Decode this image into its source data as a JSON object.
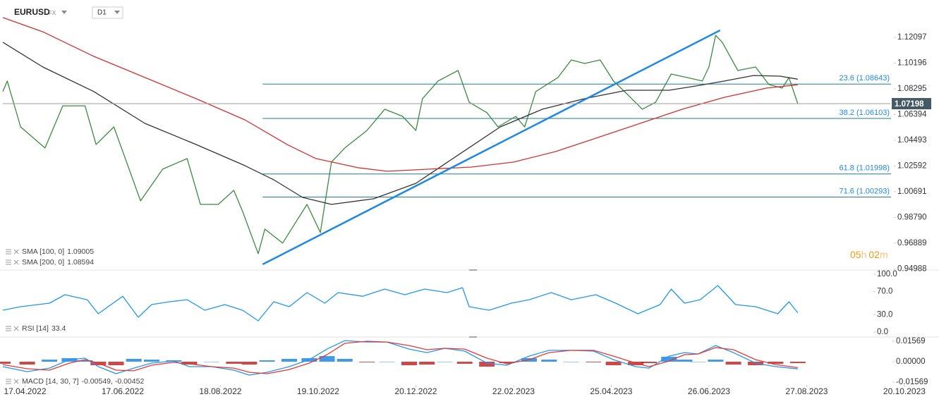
{
  "header": {
    "symbol": "EURUSD",
    "market": "FX",
    "interval": "D1",
    "timer": [
      "05",
      "h",
      "02",
      "m"
    ]
  },
  "chart_data": [
    {
      "type": "line",
      "xlim": [
        -10,
        410
      ],
      "ylim": [
        0.949,
        1.1486
      ],
      "yticks": [
        1.12097,
        1.10196,
        1.08295,
        1.06394,
        1.04493,
        1.02592,
        1.00691,
        {
          "value": 0.9879,
          "label": "0.98790"
        },
        0.96889,
        0.94988
      ],
      "series": [
        {
          "color": "#3b8a3e",
          "x": [
            -10,
            -8,
            -2,
            9,
            17,
            27,
            32,
            40,
            48,
            52,
            62,
            73,
            79,
            87,
            94,
            98,
            105,
            108,
            116,
            127,
            133,
            138,
            144,
            154,
            162,
            170,
            176,
            179,
            186,
            195,
            200,
            208,
            213,
            221,
            225,
            230,
            240,
            246,
            252,
            259,
            265,
            270,
            278,
            284,
            291,
            298,
            305,
            308,
            311,
            314,
            321,
            329,
            335,
            341,
            344,
            348
          ],
          "values": [
            1.0809,
            1.0887,
            1.0548,
            1.0392,
            1.0704,
            1.0704,
            1.0418,
            1.0548,
            1.0184,
            1.0001,
            1.0236,
            1.0314,
            0.9975,
            0.9975,
            1.0079,
            0.9923,
            0.9611,
            0.9793,
            0.9689,
            0.9975,
            0.9767,
            1.0288,
            1.0392,
            1.0522,
            1.0679,
            1.0626,
            1.0522,
            1.0757,
            1.0887,
            1.0965,
            1.0731,
            1.0653,
            1.0548,
            1.0626,
            1.0548,
            1.0809,
            1.0913,
            1.1043,
            1.1017,
            1.1043,
            1.0887,
            1.0809,
            1.0679,
            1.0731,
            1.0939,
            1.0913,
            1.0887,
            1.0991,
            1.1225,
            1.1174,
            1.0965,
            1.0991,
            1.0861,
            1.0835,
            1.0913,
            1.07198
          ]
        },
        {
          "name": "SMA [100, 0]",
          "color": "#333333",
          "x": [
            -10,
            8,
            31,
            54,
            77,
            99,
            112,
            125,
            138,
            157,
            176,
            195,
            214,
            233,
            252,
            271,
            290,
            302,
            315,
            328,
            340,
            348
          ],
          "values": [
            1.1174,
            1.0991,
            1.0809,
            1.0574,
            1.0418,
            1.0262,
            1.0157,
            1.0027,
            0.9975,
            1.0017,
            1.0131,
            1.034,
            1.0548,
            1.0679,
            1.0757,
            1.0819,
            1.0819,
            1.085,
            1.0887,
            1.0928,
            1.0923,
            1.09005
          ]
        },
        {
          "name": "SMA [200, 0]",
          "color": "#d32f2f",
          "x": [
            -10,
            8,
            31,
            54,
            77,
            99,
            118,
            131,
            150,
            163,
            182,
            201,
            220,
            239,
            258,
            277,
            296,
            315,
            334,
            348
          ],
          "values": [
            1.1356,
            1.1251,
            1.1069,
            1.0913,
            1.0757,
            1.06,
            1.0418,
            1.0314,
            1.0246,
            1.022,
            1.0236,
            1.0251,
            1.0288,
            1.0366,
            1.047,
            1.0574,
            1.0679,
            1.0767,
            1.0835,
            1.08594
          ]
        }
      ],
      "levels_x": [
        107,
        390
      ],
      "level_color": "#1f7f8c",
      "level_label_color": "#1e88e5",
      "levels": [
        {
          "label": "23.6 (1.08643)",
          "value": 1.08643
        },
        {
          "label": "38.2 (1.06103)",
          "value": 1.06103
        },
        {
          "label": "61.8 (1.01998)",
          "value": 1.01998
        },
        {
          "label": "71.6 (1.00293)",
          "value": 1.00293
        }
      ],
      "trendline": {
        "color": "#1e88e5",
        "x": [
          107,
          313
        ],
        "values": [
          0.9532,
          1.1262
        ]
      }
    },
    {
      "type": "line",
      "xlim": [
        -10,
        410
      ],
      "ylim": [
        -8.5,
        107.3
      ],
      "yticks": [
        {
          "value": 100,
          "label": "100.0"
        },
        {
          "value": 70,
          "label": "70.0"
        },
        {
          "value": 30,
          "label": "30.0"
        },
        {
          "value": 0,
          "label": "0.0"
        }
      ],
      "series": [
        {
          "name": "RSI [14]",
          "color": "#2196f3",
          "x": [
            -10,
            -2,
            11,
            18,
            28,
            33,
            44,
            51,
            57,
            65,
            73,
            81,
            90,
            98,
            105,
            112,
            119,
            127,
            135,
            141,
            152,
            162,
            171,
            180,
            190,
            197,
            200,
            209,
            219,
            227,
            237,
            246,
            257,
            266,
            276,
            286,
            291,
            297,
            304,
            312,
            320,
            329,
            339,
            344,
            348
          ],
          "values": [
            37.8,
            43.9,
            50,
            64.6,
            56,
            31.7,
            62,
            25.6,
            47.6,
            52.4,
            56,
            37.8,
            47.6,
            37.8,
            19.5,
            52.4,
            43.9,
            68.3,
            50,
            68.3,
            62,
            74.4,
            64.6,
            74.4,
            68.3,
            76.8,
            43.9,
            37.8,
            50,
            56,
            68.3,
            56,
            64.6,
            50,
            31.7,
            47.6,
            74.4,
            50,
            56,
            80.5,
            47.6,
            43.9,
            31.7,
            52.4,
            33.4
          ]
        }
      ]
    },
    {
      "type": "line",
      "xlim": [
        -10,
        410
      ],
      "ylim": [
        -0.01785,
        0.01894
      ],
      "yticks": [
        0.01569,
        {
          "value": 0,
          "label": "0.00000"
        },
        -0.01569
      ],
      "xticks": [
        {
          "value": 0,
          "label": "17.04.2022"
        },
        {
          "value": 44,
          "label": "17.06.2022"
        },
        {
          "value": 88,
          "label": "18.08.2022"
        },
        {
          "value": 132,
          "label": "19.10.2022"
        },
        {
          "value": 176,
          "label": "20.12.2022"
        },
        {
          "value": 220,
          "label": "22.02.2023"
        },
        {
          "value": 264,
          "label": "25.04.2023"
        },
        {
          "value": 308,
          "label": "26.06.2023"
        },
        {
          "value": 352,
          "label": "27.08.2023"
        },
        {
          "value": 396,
          "label": "20.10.2023"
        }
      ],
      "legend_value": "-0.00549, -0.00452",
      "series": [
        {
          "type": "bar",
          "color": "#1e88e5",
          "negative_color": "#c62828",
          "x": [
            -10,
            1,
            11,
            20,
            27,
            33,
            41,
            49,
            57,
            67,
            74,
            84,
            94,
            101,
            109,
            119,
            128,
            136,
            144,
            154,
            163,
            173,
            181,
            189,
            198,
            208,
            217,
            227,
            236,
            246,
            256,
            265,
            275,
            281,
            290,
            297,
            303,
            311,
            319,
            329,
            338,
            348
          ],
          "values": [
            -0.0016,
            -0.0022,
            0.0016,
            0.0027,
            0.0011,
            -0.0027,
            -0.0027,
            0.0022,
            0.0016,
            0.0011,
            -0.0022,
            0,
            -0.0016,
            -0.0022,
            0.0011,
            0.0022,
            0.0027,
            0.0043,
            0.0022,
            -0.0005,
            0,
            -0.0027,
            -0.0022,
            0,
            -0.0016,
            -0.0038,
            -0.0011,
            0.0027,
            0.0016,
            0,
            -0.0005,
            -0.0027,
            -0.0027,
            -0.0011,
            0.0038,
            0.0016,
            0,
            0.0016,
            -0.0022,
            -0.0027,
            -0.0016,
            -0.0011
          ]
        },
        {
          "name": "MACD [14, 30, 7]",
          "color": "#2196f3",
          "x": [
            -10,
            1,
            11,
            20,
            27,
            33,
            41,
            49,
            57,
            67,
            74,
            84,
            94,
            101,
            109,
            119,
            128,
            136,
            144,
            154,
            163,
            173,
            181,
            189,
            198,
            208,
            217,
            227,
            236,
            246,
            256,
            265,
            275,
            281,
            290,
            297,
            303,
            311,
            319,
            329,
            338,
            348
          ],
          "values": [
            -0.0038,
            -0.0076,
            -0.0049,
            0.0016,
            0.0027,
            -0.0038,
            -0.0092,
            -0.0049,
            -0.0011,
            0.0005,
            -0.0038,
            -0.0038,
            -0.0065,
            -0.0103,
            -0.0081,
            -0.0038,
            0.0016,
            0.0097,
            0.0162,
            0.0151,
            0.0151,
            0.0097,
            0.007,
            0.0103,
            0.0081,
            -0.0011,
            -0.0027,
            0.0043,
            0.0087,
            0.0087,
            0.0081,
            0.0016,
            -0.0038,
            -0.0049,
            0.0043,
            0.007,
            0.0059,
            0.0124,
            0.007,
            -0.0011,
            -0.0038,
            -0.00549
          ]
        },
        {
          "color": "#e53935",
          "x": [
            -10,
            1,
            11,
            20,
            27,
            33,
            41,
            49,
            57,
            67,
            74,
            84,
            94,
            101,
            109,
            119,
            128,
            136,
            144,
            154,
            163,
            173,
            181,
            189,
            198,
            208,
            217,
            227,
            236,
            246,
            256,
            265,
            275,
            281,
            290,
            297,
            303,
            311,
            319,
            329,
            338,
            348
          ],
          "values": [
            -0.0022,
            -0.0054,
            -0.0065,
            -0.0011,
            0.0016,
            -0.0011,
            -0.0065,
            -0.007,
            -0.0027,
            -0.0005,
            -0.0016,
            -0.0038,
            -0.0049,
            -0.0081,
            -0.0092,
            -0.006,
            -0.0011,
            0.0054,
            0.0141,
            0.0157,
            0.0151,
            0.0124,
            0.0092,
            0.0103,
            0.0097,
            0.0027,
            -0.0016,
            0.0016,
            0.007,
            0.0087,
            0.0087,
            0.0043,
            -0.0011,
            -0.0038,
            0.0005,
            0.0054,
            0.0059,
            0.0108,
            0.0092,
            0.0016,
            -0.0022,
            -0.00452
          ]
        }
      ]
    }
  ]
}
